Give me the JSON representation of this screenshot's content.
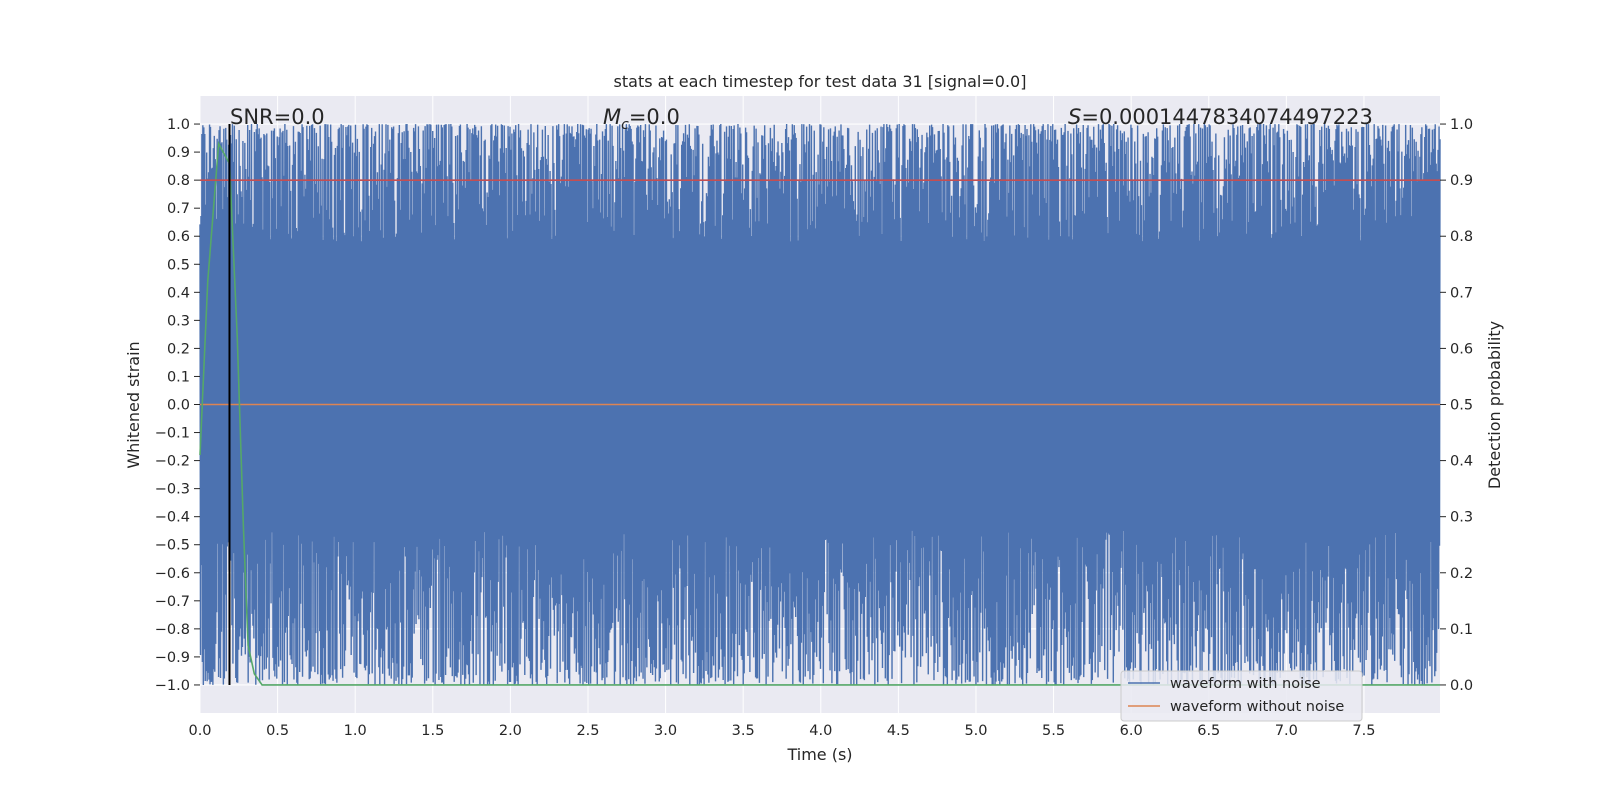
{
  "chart_data": {
    "type": "line",
    "title": "stats at each timestep for test data 31 [signal=0.0]",
    "xlabel": "Time (s)",
    "ylabel": "Whitened strain",
    "ylabel_right": "Detection probability",
    "xlim": [
      0.0,
      7.99
    ],
    "ylim": [
      -1.1,
      1.1
    ],
    "ylim_right": [
      -0.05,
      1.05
    ],
    "x_ticks": [
      "0.0",
      "0.5",
      "1.0",
      "1.5",
      "2.0",
      "2.5",
      "3.0",
      "3.5",
      "4.0",
      "4.5",
      "5.0",
      "5.5",
      "6.0",
      "6.5",
      "7.0",
      "7.5"
    ],
    "y_ticks": [
      "1.0",
      "0.9",
      "0.8",
      "0.7",
      "0.6",
      "0.5",
      "0.4",
      "0.3",
      "0.2",
      "0.1",
      "0.0",
      "−0.1",
      "−0.2",
      "−0.3",
      "−0.4",
      "−0.5",
      "−0.6",
      "−0.7",
      "−0.8",
      "−0.9",
      "−1.0"
    ],
    "y_ticks_right": [
      "1.0",
      "0.9",
      "0.8",
      "0.7",
      "0.6",
      "0.5",
      "0.4",
      "0.3",
      "0.2",
      "0.1",
      "0.0"
    ],
    "annotations": {
      "snr": "SNR=0.0",
      "mc_symbol": "M",
      "mc_sub": "c",
      "mc_value": "=0.0",
      "s_symbol": "S",
      "s_value": "=0.0001447834074497223"
    },
    "series": [
      {
        "name": "waveform with noise",
        "color": "#4c72b0",
        "description": "whitened noisy strain oscillating densely between -1.0 and 1.0 over the full time range"
      },
      {
        "name": "waveform without noise",
        "color": "#dd8452",
        "x": [
          0.0,
          7.99
        ],
        "values": [
          0.0,
          0.0
        ]
      },
      {
        "name": "detection probability",
        "color": "#55a868",
        "axis": "right",
        "x": [
          0.0,
          0.05,
          0.12,
          0.19,
          0.24,
          0.28,
          0.31,
          0.35,
          0.4,
          7.99
        ],
        "values": [
          0.41,
          0.72,
          0.965,
          0.93,
          0.62,
          0.28,
          0.07,
          0.02,
          0.0,
          0.0
        ]
      },
      {
        "name": "threshold",
        "color": "#c44e52",
        "axis": "right",
        "x": [
          0.0,
          7.99
        ],
        "values": [
          0.9,
          0.9
        ]
      },
      {
        "name": "marker",
        "color": "#000000",
        "x": [
          0.19,
          0.19
        ],
        "values": [
          -1.0,
          1.0
        ]
      }
    ],
    "legend": {
      "placement": "lower-right",
      "entries": [
        {
          "label": "waveform with noise",
          "color": "#4c72b0"
        },
        {
          "label": "waveform without noise",
          "color": "#dd8452"
        }
      ]
    },
    "style": {
      "background": "#eaeaf2",
      "grid": "#ffffff"
    }
  }
}
